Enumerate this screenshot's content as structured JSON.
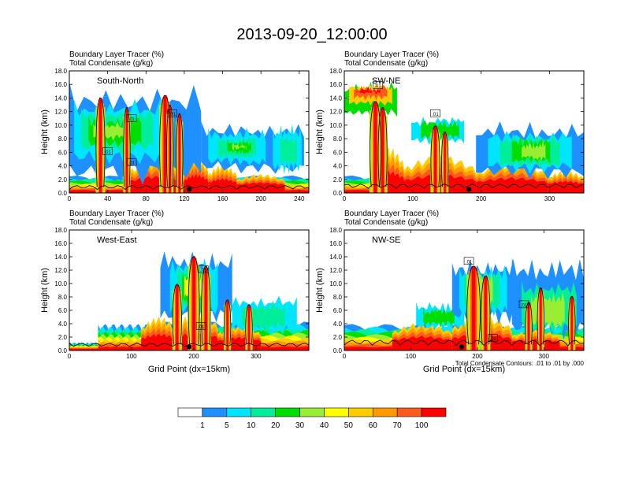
{
  "page": {
    "title": "2013-09-20_12:00:00"
  },
  "colors": {
    "scale": [
      "#ffffff",
      "#1e90ff",
      "#00e5ff",
      "#00ee99",
      "#00dd00",
      "#99ee33",
      "#ffff00",
      "#ffcc00",
      "#ff9900",
      "#ff5a1e",
      "#ff0000"
    ],
    "contour": "#000000",
    "terrain": "#000000"
  },
  "chart_data": [
    {
      "type": "heatmap",
      "panel_label": "South-North",
      "field_title": "Boundary Layer Tracer    (%)",
      "contour_title": "Total Condensate    (g/kg)",
      "ylabel": "Height (km)",
      "xlabel": "",
      "xlim": [
        0,
        250
      ],
      "ylim": [
        0,
        18
      ],
      "xticks": [
        "0",
        "40",
        "80",
        "120",
        "160",
        "200",
        "240"
      ],
      "yticks": [
        "0.0",
        "2.0",
        "4.0",
        "6.0",
        "8.0",
        "10.0",
        "12.0",
        "14.0",
        "16.0",
        "18.0"
      ],
      "contour_labels": [
        ".01",
        ".01",
        ".01",
        ".01"
      ]
    },
    {
      "type": "heatmap",
      "panel_label": "SW-NE",
      "field_title": "Boundary Layer Tracer    (%)",
      "contour_title": "Total Condensate    (g/kg)",
      "ylabel": "Height (km)",
      "xlabel": "",
      "xlim": [
        0,
        350
      ],
      "ylim": [
        0,
        18
      ],
      "xticks": [
        "0",
        "100",
        "200",
        "300"
      ],
      "yticks": [
        "0.0",
        "2.0",
        "4.0",
        "6.0",
        "8.0",
        "10.0",
        "12.0",
        "14.0",
        "16.0",
        "18.0"
      ],
      "contour_labels": [
        ".01",
        ".01"
      ]
    },
    {
      "type": "heatmap",
      "panel_label": "West-East",
      "field_title": "Boundary Layer Tracer    (%)",
      "contour_title": "Total Condensate    (g/kg)",
      "ylabel": "Height (km)",
      "xlabel": "Grid Point (dx=15km)",
      "xlim": [
        0,
        385
      ],
      "ylim": [
        0,
        18
      ],
      "xticks": [
        "0",
        "100",
        "200",
        "300"
      ],
      "yticks": [
        "0.0",
        "2.0",
        "4.0",
        "6.0",
        "8.0",
        "10.0",
        "12.0",
        "14.0",
        "16.0",
        "18.0"
      ],
      "contour_labels": [
        ".01",
        ".01"
      ]
    },
    {
      "type": "heatmap",
      "panel_label": "NW-SE",
      "field_title": "Boundary Layer Tracer    (%)",
      "contour_title": "Total Condensate    (g/kg)",
      "ylabel": "Height (km)",
      "xlabel": "Grid Point (dx=15km)",
      "xlim": [
        0,
        360
      ],
      "ylim": [
        0,
        18
      ],
      "xticks": [
        "0",
        "100",
        "200",
        "300"
      ],
      "yticks": [
        "0.0",
        "2.0",
        "4.0",
        "6.0",
        "8.0",
        "10.0",
        "12.0",
        "14.0",
        "16.0",
        "18.0"
      ],
      "contour_labels": [
        ".01",
        ".01",
        ".01"
      ],
      "footnote": "Total Condensate Contours: .01 to .01 by .000"
    }
  ],
  "colorbar": {
    "labels": [
      "1",
      "5",
      "10",
      "20",
      "30",
      "40",
      "50",
      "60",
      "70",
      "100"
    ]
  }
}
